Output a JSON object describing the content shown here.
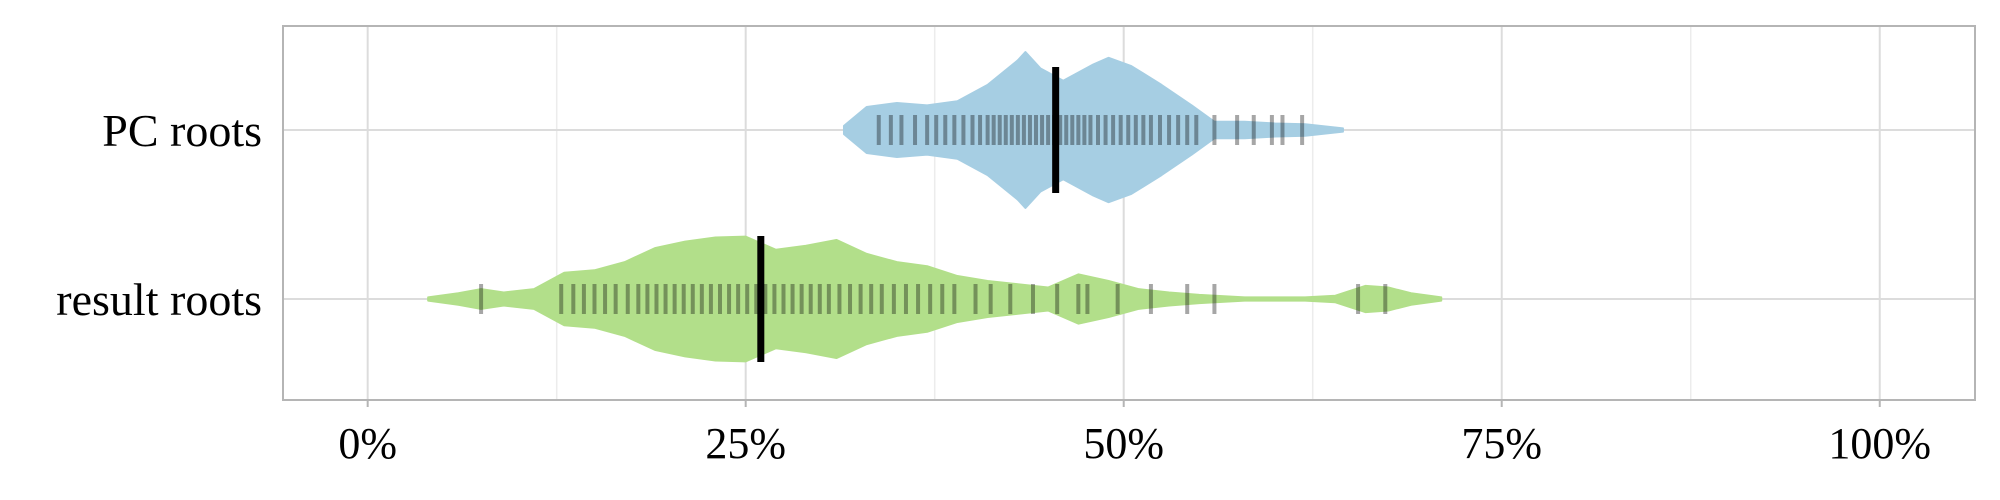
{
  "chart_data": {
    "type": "violin",
    "title": "",
    "xlabel": "",
    "ylabel": "",
    "xlim": [
      -5.6,
      106.3
    ],
    "x_ticks": [
      0,
      25,
      50,
      75,
      100
    ],
    "x_tick_labels": [
      "0%",
      "25%",
      "50%",
      "75%",
      "100%"
    ],
    "minor_gridlines": [
      12.5,
      37.5,
      62.5,
      87.5
    ],
    "grid": true,
    "legend": "none",
    "marker_color": "#000000",
    "series": [
      {
        "name": "PC roots",
        "color": "#a6cee3",
        "median": 45.5,
        "range": [
          31.5,
          64.5
        ],
        "density": [
          [
            31.5,
            0.05
          ],
          [
            33,
            0.28
          ],
          [
            35,
            0.33
          ],
          [
            37,
            0.3
          ],
          [
            39,
            0.35
          ],
          [
            41,
            0.55
          ],
          [
            43,
            0.85
          ],
          [
            43.5,
            0.95
          ],
          [
            44.5,
            0.75
          ],
          [
            46,
            0.6
          ],
          [
            48,
            0.8
          ],
          [
            49,
            0.88
          ],
          [
            50.5,
            0.78
          ],
          [
            52.5,
            0.55
          ],
          [
            54.5,
            0.3
          ],
          [
            56,
            0.1
          ],
          [
            58,
            0.1
          ],
          [
            60,
            0.08
          ],
          [
            62,
            0.07
          ],
          [
            64.5,
            0.02
          ]
        ],
        "points": [
          33.8,
          34.6,
          35.3,
          36.2,
          37.0,
          37.6,
          38.2,
          38.8,
          39.4,
          40.0,
          40.5,
          41.0,
          41.4,
          41.8,
          42.2,
          42.6,
          43.0,
          43.4,
          43.8,
          44.2,
          44.6,
          45.0,
          45.4,
          45.8,
          46.2,
          46.6,
          47.0,
          47.4,
          47.8,
          48.3,
          48.8,
          49.3,
          49.8,
          50.3,
          50.8,
          51.3,
          51.8,
          52.4,
          53.0,
          53.6,
          54.2,
          54.8,
          56.0,
          57.5,
          58.6,
          59.8,
          60.5,
          61.8
        ]
      },
      {
        "name": "result roots",
        "color": "#b2df8a",
        "median": 26.0,
        "range": [
          4.0,
          71.0
        ],
        "density": [
          [
            4,
            0.02
          ],
          [
            6,
            0.07
          ],
          [
            7.5,
            0.12
          ],
          [
            9,
            0.08
          ],
          [
            11,
            0.12
          ],
          [
            13,
            0.32
          ],
          [
            15,
            0.35
          ],
          [
            17,
            0.45
          ],
          [
            19,
            0.62
          ],
          [
            21,
            0.7
          ],
          [
            23,
            0.75
          ],
          [
            25,
            0.76
          ],
          [
            27,
            0.6
          ],
          [
            29,
            0.65
          ],
          [
            31,
            0.72
          ],
          [
            33,
            0.55
          ],
          [
            35,
            0.45
          ],
          [
            37,
            0.4
          ],
          [
            39,
            0.28
          ],
          [
            41,
            0.22
          ],
          [
            43,
            0.18
          ],
          [
            45,
            0.14
          ],
          [
            47,
            0.3
          ],
          [
            49,
            0.22
          ],
          [
            51,
            0.12
          ],
          [
            53,
            0.08
          ],
          [
            55,
            0.05
          ],
          [
            58,
            0.02
          ],
          [
            62,
            0.02
          ],
          [
            64,
            0.04
          ],
          [
            66,
            0.16
          ],
          [
            67.5,
            0.14
          ],
          [
            69,
            0.07
          ],
          [
            71,
            0.02
          ]
        ],
        "points": [
          7.5,
          12.8,
          13.6,
          14.3,
          15.0,
          15.7,
          16.4,
          17.2,
          17.9,
          18.5,
          19.1,
          19.7,
          20.3,
          20.9,
          21.5,
          22.1,
          22.7,
          23.3,
          23.9,
          24.5,
          25.1,
          25.7,
          26.3,
          26.9,
          27.5,
          28.1,
          28.7,
          29.3,
          29.9,
          30.5,
          31.2,
          31.9,
          32.6,
          33.3,
          34.0,
          34.8,
          35.6,
          36.4,
          37.2,
          38.0,
          38.8,
          40.2,
          41.2,
          42.5,
          44.0,
          45.6,
          47.0,
          47.6,
          49.6,
          51.8,
          54.2,
          56.0,
          65.5,
          67.3
        ]
      }
    ]
  }
}
